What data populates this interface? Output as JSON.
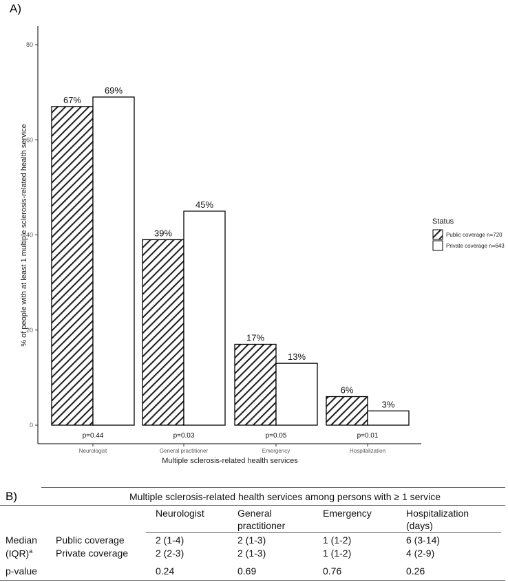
{
  "panel_a_label": "A)",
  "panel_b_label": "B)",
  "chart_data": {
    "type": "bar",
    "title": "",
    "xlabel": "Multiple sclerosis-related health services",
    "ylabel": "% of people with at least 1 multiple sclerosis-related health service",
    "ylim": [
      0,
      85
    ],
    "yticks": [
      0,
      20,
      40,
      60,
      80
    ],
    "categories": [
      "Neurologist",
      "General practitioner",
      "Emergency",
      "Hospitalization"
    ],
    "series": [
      {
        "name": "Public coverage n=720",
        "values": [
          67,
          39,
          17,
          6
        ],
        "labels": [
          "67%",
          "39%",
          "17%",
          "6%"
        ],
        "fill": "hatched"
      },
      {
        "name": "Private coverage n=643",
        "values": [
          69,
          45,
          13,
          3
        ],
        "labels": [
          "69%",
          "45%",
          "13%",
          "3%"
        ],
        "fill": "white"
      }
    ],
    "pvalues": [
      "p=0.44",
      "p=0.03",
      "p=0.05",
      "p=0.01"
    ],
    "legend_title": "Status",
    "legend_position": "right",
    "grid": false
  },
  "table": {
    "title": "Multiple sclerosis-related health services among persons with ≥ 1 service",
    "columns": [
      {
        "line1": "Neurologist",
        "line2": ""
      },
      {
        "line1": "General",
        "line2": "practitioner"
      },
      {
        "line1": "Emergency",
        "line2": ""
      },
      {
        "line1": "Hospitalization",
        "line2": "(days)"
      }
    ],
    "median_label": "Median",
    "iqr_label": "(IQR)",
    "iqr_sup": "a",
    "rows": [
      {
        "label": "Public coverage",
        "values": [
          "2 (1-4)",
          "2 (1-3)",
          "1 (1-2)",
          "6 (3-14)"
        ]
      },
      {
        "label": "Private coverage",
        "values": [
          "2 (2-3)",
          "2 (1-3)",
          "1 (1-2)",
          "4 (2-9)"
        ]
      }
    ],
    "pvalue_label": "p-value",
    "pvalues": [
      "0.24",
      "0.69",
      "0.76",
      "0.26"
    ]
  }
}
